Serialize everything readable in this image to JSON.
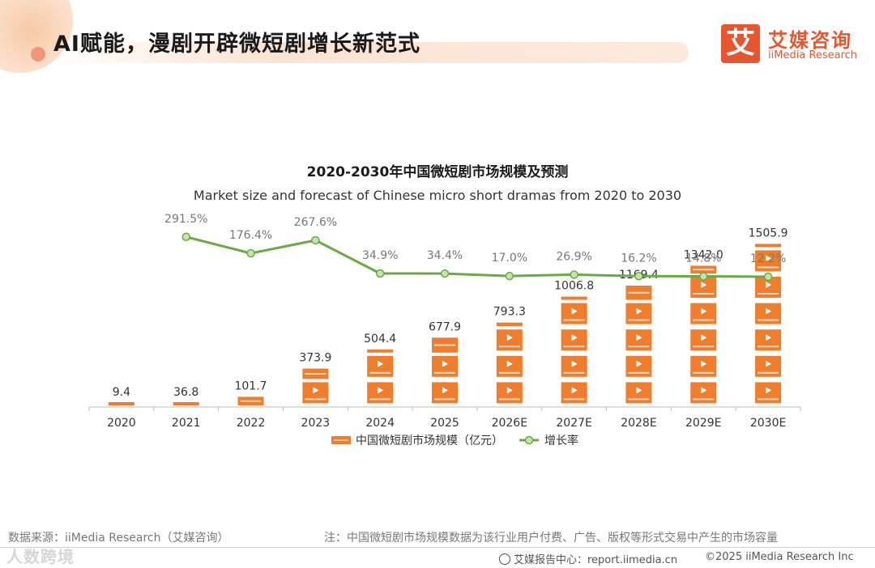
{
  "header": {
    "title": "AI赋能，漫剧开辟微短剧增长新范式",
    "logo_cn": "艾媒咨询",
    "logo_en": "iiMedia Research",
    "logo_mark": "艾"
  },
  "chart_data": {
    "type": "bar",
    "title": "2020-2030年中国微短剧市场规模及预测",
    "subtitle": "Market size and forecast of Chinese micro short dramas from 2020 to 2030",
    "categories": [
      "2020",
      "2021",
      "2022",
      "2023",
      "2024",
      "2025",
      "2026E",
      "2027E",
      "2028E",
      "2029E",
      "2030E"
    ],
    "series": [
      {
        "name": "中国微短剧市场规模（亿元）",
        "type": "bar",
        "values": [
          9.4,
          36.8,
          101.7,
          373.9,
          504.4,
          677.9,
          793.3,
          1006.8,
          1169.4,
          1342.0,
          1505.9
        ],
        "labels": [
          "9.4",
          "36.8",
          "101.7",
          "373.9",
          "504.4",
          "677.9",
          "793.3",
          "1006.8",
          "1169.4",
          "1342.0",
          "1505.9"
        ],
        "color": "#ef7d2e"
      },
      {
        "name": "增长率",
        "type": "line",
        "values": [
          null,
          291.5,
          176.4,
          267.6,
          34.9,
          34.4,
          17.0,
          26.9,
          16.2,
          14.8,
          12.2
        ],
        "labels": [
          "",
          "291.5%",
          "176.4%",
          "267.6%",
          "34.9%",
          "34.4%",
          "17.0%",
          "26.9%",
          "16.2%",
          "14.8%",
          "12.2%"
        ],
        "color": "#6aaa45"
      }
    ],
    "legend_position": "bottom-center",
    "grid": false
  },
  "footer": {
    "source": "数据来源：iiMedia Research（艾媒咨询）",
    "note": "注：中国微短剧市场规模数据为该行业用户付费、广告、版权等形式交易中产生的市场容量",
    "site": "艾媒报告中心：report.iimedia.cn",
    "copyright": "©2025  iiMedia Research  Inc",
    "watermark": "人数跨境"
  }
}
